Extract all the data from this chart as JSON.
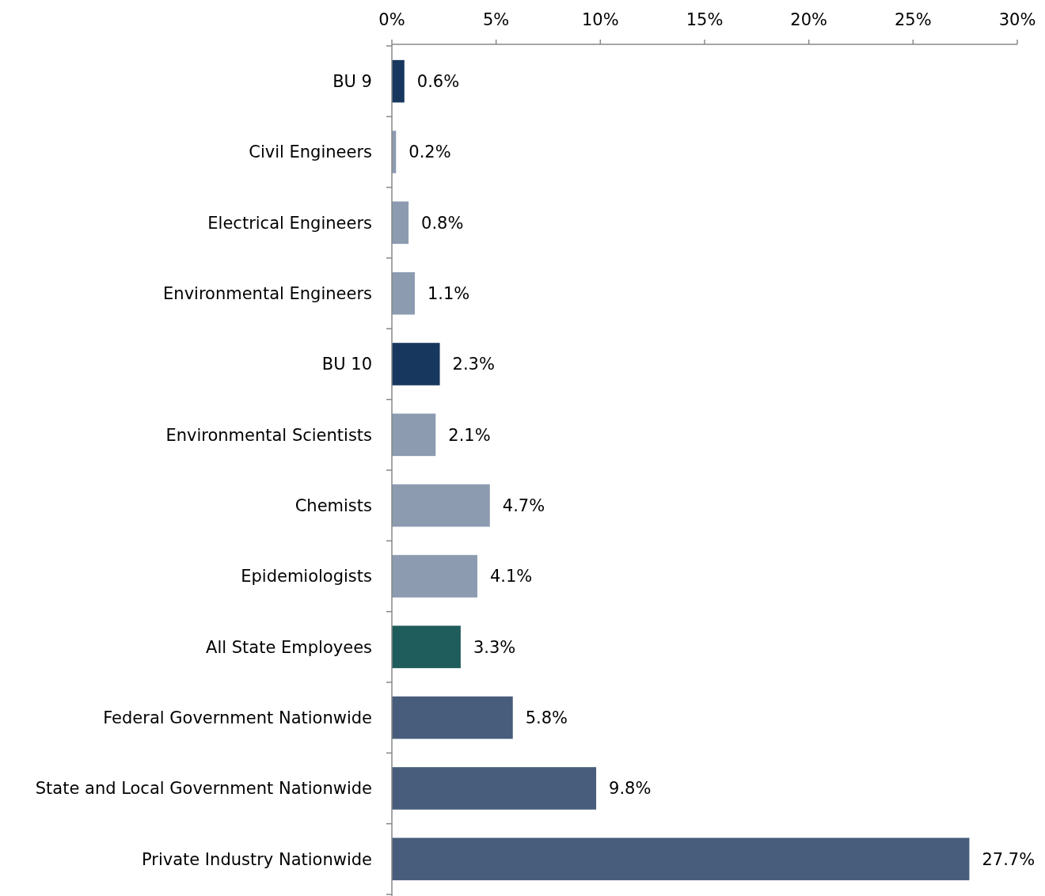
{
  "chart_data": {
    "type": "bar",
    "orientation": "horizontal",
    "categories": [
      "BU 9",
      "Civil Engineers",
      "Electrical Engineers",
      "Environmental Engineers",
      "BU 10",
      "Environmental Scientists",
      "Chemists",
      "Epidemiologists",
      "All State Employees",
      "Federal Government Nationwide",
      "State and Local Government Nationwide",
      "Private Industry Nationwide"
    ],
    "values": [
      0.6,
      0.2,
      0.8,
      1.1,
      2.3,
      2.1,
      4.7,
      4.1,
      3.3,
      5.8,
      9.8,
      27.7
    ],
    "colors": [
      "#17375e",
      "#8c9bb0",
      "#8c9bb0",
      "#8c9bb0",
      "#17375e",
      "#8c9bb0",
      "#8c9bb0",
      "#8c9bb0",
      "#1f5c5c",
      "#475d7b",
      "#475d7b",
      "#475d7b"
    ],
    "value_labels": [
      "0.6%",
      "0.2%",
      "0.8%",
      "1.1%",
      "2.3%",
      "2.1%",
      "4.7%",
      "4.1%",
      "3.3%",
      "5.8%",
      "9.8%",
      "27.7%"
    ],
    "xlim": [
      0,
      30
    ],
    "xticks": [
      {
        "value": 0,
        "label": "0%"
      },
      {
        "value": 5,
        "label": "5%"
      },
      {
        "value": 10,
        "label": "10%"
      },
      {
        "value": 15,
        "label": "15%"
      },
      {
        "value": 20,
        "label": "20%"
      },
      {
        "value": 25,
        "label": "25%"
      },
      {
        "value": 30,
        "label": "30%"
      }
    ]
  }
}
